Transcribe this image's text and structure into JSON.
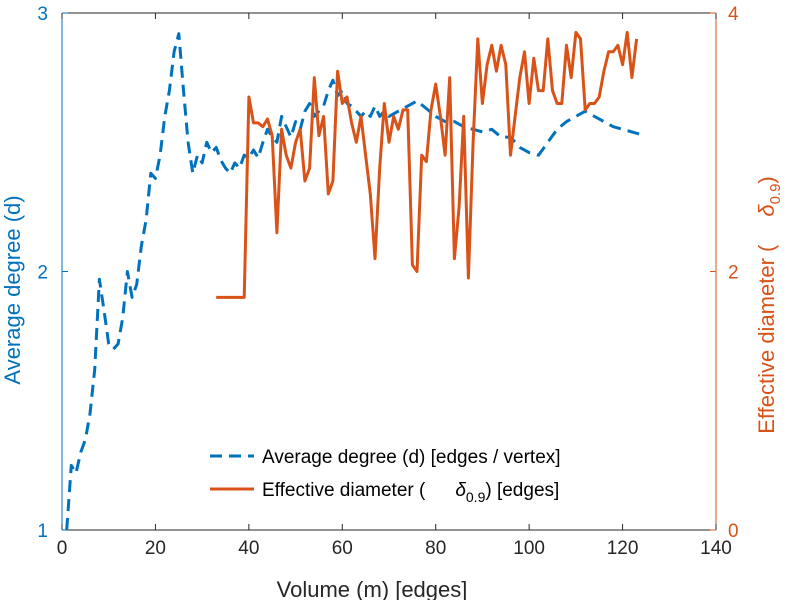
{
  "chart_data": {
    "type": "line",
    "title": "",
    "xlabel": "Volume (m) [edges]",
    "ylabel_left": "Average degree (d)",
    "ylabel_right": "Effective diameter (",
    "ylabel_right_symbol": "δ",
    "ylabel_right_subscript": "0.9",
    "ylabel_right_suffix": ")",
    "xlim": [
      0,
      140
    ],
    "ylim_left": [
      1,
      3
    ],
    "ylim_right": [
      0,
      4
    ],
    "x_ticks": [
      0,
      20,
      40,
      60,
      80,
      100,
      120,
      140
    ],
    "y_left_ticks": [
      1,
      2,
      3
    ],
    "y_right_ticks": [
      0,
      2,
      4
    ],
    "colors": {
      "left": "#0072BD",
      "right": "#D95319"
    },
    "series": [
      {
        "name": "Average degree (d) [edges / vertex]",
        "axis": "left",
        "style": "dashed",
        "x": [
          1,
          2,
          3,
          4,
          5,
          6,
          7,
          8,
          9,
          10,
          11,
          12,
          13,
          14,
          15,
          16,
          17,
          18,
          19,
          20,
          21,
          22,
          23,
          24,
          25,
          26,
          27,
          28,
          29,
          30,
          31,
          32,
          33,
          34,
          35,
          36,
          37,
          38,
          39,
          40,
          41,
          42,
          43,
          44,
          45,
          46,
          47,
          48,
          49,
          50,
          51,
          52,
          53,
          54,
          55,
          56,
          57,
          58,
          59,
          60,
          61,
          62,
          63,
          64,
          65,
          66,
          67,
          68,
          69,
          70,
          72,
          74,
          76,
          78,
          80,
          82,
          84,
          86,
          88,
          90,
          92,
          94,
          96,
          98,
          100,
          102,
          104,
          106,
          108,
          110,
          112,
          114,
          116,
          118,
          120,
          122,
          124
        ],
        "y": [
          1.0,
          1.25,
          1.22,
          1.3,
          1.35,
          1.45,
          1.62,
          1.97,
          1.85,
          1.72,
          1.7,
          1.72,
          1.82,
          2.0,
          1.9,
          1.95,
          2.1,
          2.2,
          2.38,
          2.36,
          2.45,
          2.6,
          2.7,
          2.85,
          2.92,
          2.7,
          2.5,
          2.38,
          2.45,
          2.42,
          2.5,
          2.46,
          2.48,
          2.43,
          2.4,
          2.38,
          2.42,
          2.4,
          2.45,
          2.44,
          2.47,
          2.44,
          2.5,
          2.55,
          2.52,
          2.5,
          2.6,
          2.56,
          2.52,
          2.58,
          2.55,
          2.62,
          2.65,
          2.6,
          2.62,
          2.64,
          2.7,
          2.74,
          2.68,
          2.7,
          2.65,
          2.64,
          2.62,
          2.6,
          2.62,
          2.6,
          2.64,
          2.6,
          2.62,
          2.6,
          2.62,
          2.64,
          2.66,
          2.63,
          2.6,
          2.58,
          2.58,
          2.56,
          2.55,
          2.54,
          2.55,
          2.52,
          2.52,
          2.48,
          2.46,
          2.45,
          2.5,
          2.55,
          2.58,
          2.6,
          2.62,
          2.6,
          2.58,
          2.56,
          2.55,
          2.54,
          2.53
        ]
      },
      {
        "name": "Effective diameter (",
        "name_symbol": "δ",
        "name_subscript": "0.9",
        "name_suffix": ") [edges]",
        "axis": "right",
        "style": "solid",
        "x": [
          33,
          39,
          40,
          41,
          42,
          43,
          44,
          45,
          46,
          47,
          48,
          49,
          50,
          51,
          52,
          53,
          54,
          55,
          56,
          57,
          58,
          59,
          60,
          61,
          62,
          63,
          64,
          65,
          66,
          67,
          68,
          69,
          70,
          71,
          72,
          73,
          74,
          75,
          76,
          77,
          78,
          79,
          80,
          81,
          82,
          83,
          84,
          85,
          86,
          87,
          88,
          89,
          90,
          91,
          92,
          93,
          94,
          95,
          96,
          97,
          98,
          99,
          100,
          101,
          102,
          103,
          104,
          105,
          106,
          107,
          108,
          109,
          110,
          111,
          112,
          113,
          114,
          115,
          116,
          117,
          118,
          119,
          120,
          121,
          122,
          123
        ],
        "y": [
          1.8,
          1.8,
          3.35,
          3.15,
          3.15,
          3.12,
          3.18,
          3.05,
          2.3,
          3.1,
          2.9,
          2.8,
          3.0,
          3.1,
          2.7,
          2.8,
          3.5,
          3.05,
          3.2,
          2.6,
          2.7,
          3.55,
          3.3,
          3.35,
          3.15,
          3.0,
          3.2,
          2.9,
          2.6,
          2.1,
          2.8,
          3.3,
          3.0,
          3.2,
          3.1,
          3.25,
          3.25,
          2.05,
          2.0,
          2.9,
          2.85,
          3.25,
          3.45,
          3.2,
          2.9,
          3.5,
          2.1,
          2.5,
          3.2,
          1.95,
          3.0,
          3.8,
          3.3,
          3.6,
          3.75,
          3.55,
          3.75,
          3.6,
          2.9,
          3.2,
          3.5,
          3.7,
          3.3,
          3.65,
          3.4,
          3.4,
          3.8,
          3.4,
          3.3,
          3.3,
          3.75,
          3.5,
          3.85,
          3.8,
          3.25,
          3.3,
          3.3,
          3.35,
          3.55,
          3.7,
          3.7,
          3.75,
          3.6,
          3.85,
          3.5,
          3.8
        ]
      }
    ],
    "legend": {
      "entries": [
        {
          "label": "Average degree (d) [edges / vertex]"
        },
        {
          "label_prefix": "Effective diameter (",
          "symbol": "δ",
          "subscript": "0.9",
          "label_suffix": ") [edges]"
        }
      ],
      "position": "bottom-right"
    }
  }
}
